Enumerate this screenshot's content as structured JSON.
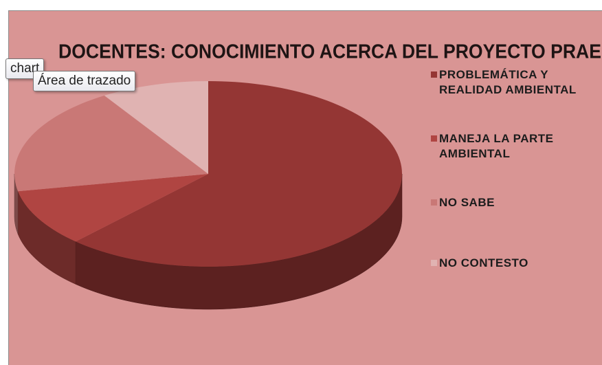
{
  "chart_data": {
    "type": "pie",
    "title": "DOCENTES: CONOCIMIENTO ACERCA DEL PROYECTO PRAE",
    "categories": [
      "PROBLEMÁTICA Y REALIDAD AMBIENTAL",
      "MANEJA LA PARTE AMBIENTAL",
      "NO SABE",
      "NO CONTESTO"
    ],
    "values": [
      62,
      10,
      19,
      9
    ],
    "colors": [
      "#943634",
      "#b04542",
      "#c97876",
      "#e0b3b2"
    ],
    "legend": "right"
  },
  "tooltips": [
    "chart",
    "Área de trazado"
  ]
}
